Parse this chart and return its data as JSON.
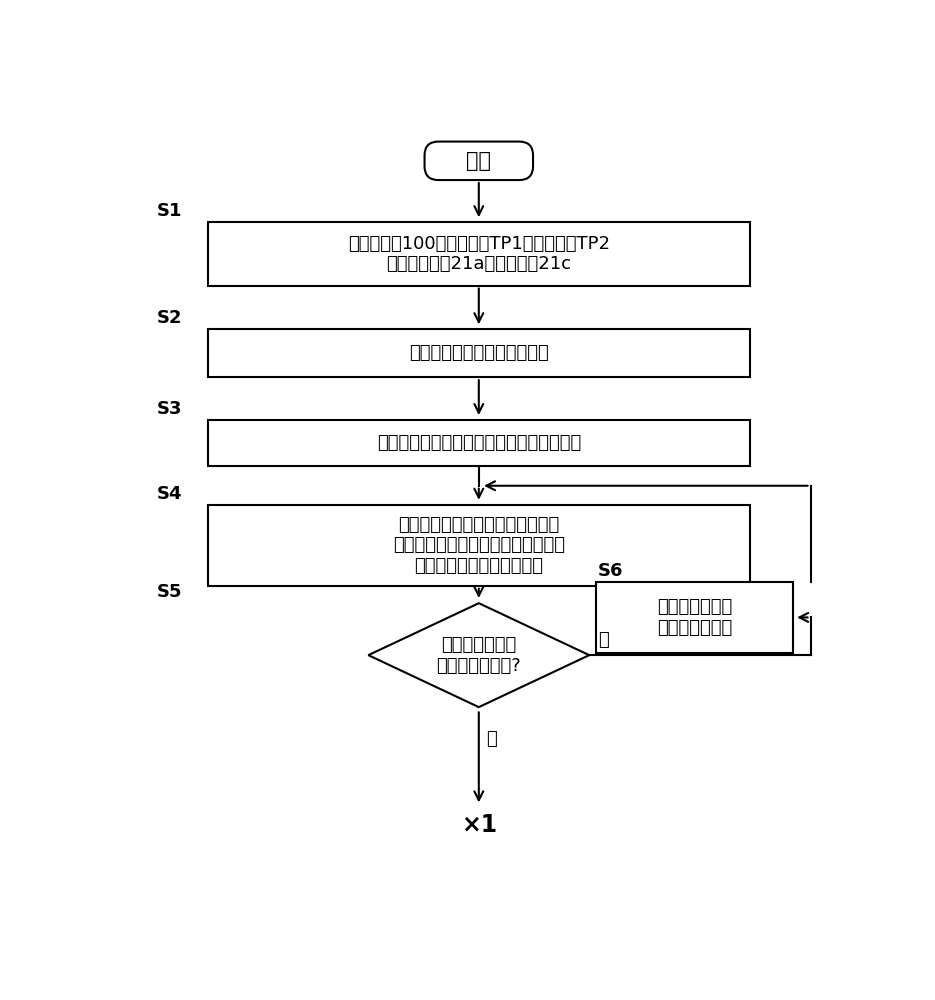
{
  "bg_color": "#ffffff",
  "line_color": "#000000",
  "text_color": "#000000",
  "font_size_main": 13,
  "start_text": "开始",
  "s1_label": "S1",
  "s1_text": "在触控面板100的检测坐标TP1和检测坐标TP2\n接触模拟手执21a和模拟手执21c",
  "s2_label": "S2",
  "s2_text": "测定各感应区域的静电容量値",
  "s3_label": "S3",
  "s3_text": "将各感应区域中的任意一个设定为关注区域",
  "s4_label": "S4",
  "s4_text": "基于关注区域及相邻于关注区域的\n其它感应区域的探测値和相关値表，\n计算关注区域的相关校正値",
  "s5_label": "S5",
  "s5_text": "对所有感应区域\n获取相关校正値?",
  "s6_label": "S6",
  "s6_text": "将关注区域变更\n为其它感应区域",
  "yes_text": "是",
  "no_text": "否",
  "end_text": "×1"
}
